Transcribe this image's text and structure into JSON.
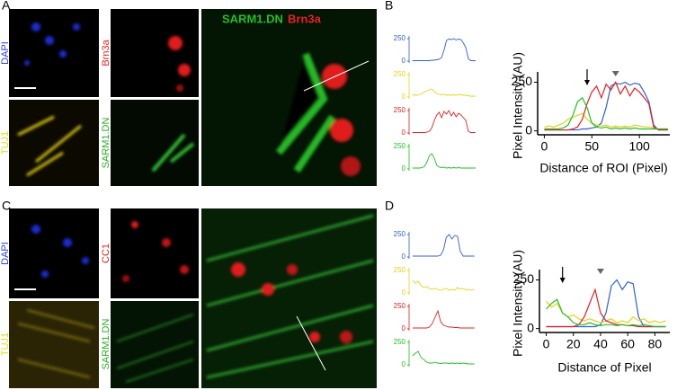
{
  "panel_labels": [
    "A",
    "B",
    "C",
    "D"
  ],
  "image_panels": [
    {
      "labels": [
        "DAPI",
        "TUJ1",
        "Brn3a",
        "SARM1.DN"
      ],
      "merge": [
        "SARM1.DN",
        "Brn3a"
      ]
    },
    {
      "labels": [
        "DAPI",
        "TUJ1",
        "CC1",
        "SARM1.DN"
      ]
    }
  ],
  "chart_data": [
    {
      "type": "line",
      "y_label": "Pixel Intensity (AU)",
      "x_label": "Distance of ROI (Pixel)",
      "xlim": [
        -7,
        132
      ],
      "xticks": [
        0,
        50,
        100
      ],
      "ylim": [
        -20,
        280
      ],
      "yticks": [
        0,
        250
      ],
      "markers": {
        "arrow": 45,
        "triangle": 75
      },
      "x": [
        0,
        5,
        10,
        15,
        20,
        25,
        30,
        35,
        40,
        45,
        50,
        55,
        60,
        65,
        70,
        75,
        80,
        85,
        90,
        95,
        100,
        105,
        110,
        115,
        120,
        125,
        130
      ],
      "series": [
        {
          "name": "blue",
          "color": "#2f5fd0",
          "values": [
            5,
            5,
            5,
            5,
            5,
            5,
            5,
            5,
            10,
            10,
            15,
            20,
            40,
            120,
            230,
            245,
            240,
            250,
            235,
            245,
            240,
            200,
            150,
            30,
            5,
            5,
            5
          ]
        },
        {
          "name": "yellow",
          "color": "#e3d21a",
          "values": [
            20,
            25,
            20,
            30,
            40,
            60,
            70,
            80,
            90,
            60,
            40,
            30,
            25,
            30,
            20,
            25,
            20,
            25,
            20,
            30,
            25,
            20,
            20,
            15,
            10,
            10,
            10
          ]
        },
        {
          "name": "red",
          "color": "#e02020",
          "values": [
            5,
            5,
            5,
            5,
            5,
            5,
            10,
            20,
            60,
            140,
            200,
            230,
            170,
            240,
            210,
            250,
            190,
            230,
            180,
            220,
            200,
            170,
            140,
            20,
            5,
            5,
            5
          ]
        },
        {
          "name": "green",
          "color": "#22c022",
          "values": [
            10,
            10,
            10,
            10,
            15,
            30,
            80,
            150,
            170,
            120,
            40,
            20,
            15,
            20,
            10,
            15,
            10,
            15,
            10,
            15,
            10,
            10,
            10,
            10,
            10,
            10,
            10
          ]
        }
      ]
    },
    {
      "type": "line",
      "y_label": "Pixel Intensity (AU)",
      "x_label": "Distance of Pixel",
      "xlim": [
        -5,
        91
      ],
      "xticks": [
        0,
        20,
        40,
        60,
        80
      ],
      "ylim": [
        -20,
        280
      ],
      "yticks": [
        0,
        250
      ],
      "markers": {
        "arrow": 12,
        "triangle": 40
      },
      "x": [
        0,
        4,
        8,
        12,
        16,
        20,
        24,
        28,
        32,
        36,
        40,
        44,
        48,
        52,
        56,
        60,
        64,
        68,
        72,
        76,
        80,
        84,
        88
      ],
      "series": [
        {
          "name": "blue",
          "color": "#2f5fd0",
          "values": [
            10,
            10,
            10,
            10,
            10,
            10,
            10,
            10,
            10,
            10,
            20,
            80,
            220,
            250,
            200,
            240,
            230,
            60,
            10,
            10,
            10,
            10,
            10
          ]
        },
        {
          "name": "yellow",
          "color": "#e3d21a",
          "values": [
            140,
            110,
            130,
            80,
            60,
            70,
            50,
            40,
            50,
            40,
            30,
            40,
            50,
            30,
            40,
            30,
            60,
            40,
            50,
            30,
            40,
            30,
            40
          ]
        },
        {
          "name": "red",
          "color": "#e02020",
          "values": [
            10,
            10,
            10,
            10,
            10,
            10,
            20,
            60,
            130,
            200,
            80,
            40,
            30,
            20,
            20,
            15,
            15,
            10,
            10,
            10,
            10,
            10,
            10
          ]
        },
        {
          "name": "green",
          "color": "#22c022",
          "values": [
            100,
            130,
            150,
            80,
            60,
            30,
            20,
            20,
            30,
            20,
            15,
            20,
            20,
            15,
            20,
            15,
            20,
            15,
            20,
            15,
            10,
            10,
            10
          ]
        }
      ]
    }
  ]
}
